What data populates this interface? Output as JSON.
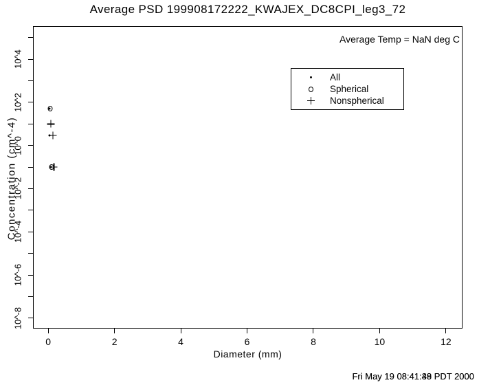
{
  "title": "Average PSD 199908172222_KWAJEX_DC8CPI_leg3_72",
  "annotations": {
    "avg_temp": "Average Temp = NaN deg C"
  },
  "footer": {
    "timestamp_primary": "Fri May 19 08:41:38 PDT 2000",
    "timestamp_overprint": "Fri May 19 08:41:49 PDT 2000"
  },
  "legend": {
    "items": [
      {
        "label": "All",
        "marker": "dot"
      },
      {
        "label": "Spherical",
        "marker": "circle"
      },
      {
        "label": "Nonspherical",
        "marker": "plus"
      }
    ]
  },
  "chart_data": {
    "type": "scatter",
    "title": "Average PSD 199908172222_KWAJEX_DC8CPI_leg3_72",
    "xlabel": "Diameter (mm)",
    "ylabel": "Concentration (cm^-4)",
    "x_scale": "linear",
    "y_scale": "log",
    "grid": false,
    "legend_position": "upper-right-inset",
    "xlim": [
      -0.46,
      12.5
    ],
    "ylim_exponents": [
      -8.48,
      5.53
    ],
    "x_ticks": [
      0,
      2,
      4,
      6,
      8,
      10,
      12
    ],
    "y_ticks_labeled": [
      {
        "exponent": 4,
        "label": "10^4"
      },
      {
        "exponent": 2,
        "label": "10^2"
      },
      {
        "exponent": 0,
        "label": "10^0"
      },
      {
        "exponent": -2,
        "label": "10^-2"
      },
      {
        "exponent": -4,
        "label": "10^-4"
      },
      {
        "exponent": -6,
        "label": "10^-6"
      },
      {
        "exponent": -8,
        "label": "10^-8"
      }
    ],
    "y_ticks_minor_exponents": [
      5,
      3,
      1,
      -1,
      -3,
      -5,
      -7
    ],
    "series": [
      {
        "name": "All",
        "marker": "dot",
        "points": [
          {
            "x": 0.04,
            "y": 50
          },
          {
            "x": 0.04,
            "y": 3
          },
          {
            "x": 0.08,
            "y": 0.1
          }
        ]
      },
      {
        "name": "Spherical",
        "marker": "circle",
        "points": [
          {
            "x": 0.06,
            "y": 50
          },
          {
            "x": 0.1,
            "y": 0.1
          }
        ]
      },
      {
        "name": "Nonspherical",
        "marker": "plus",
        "points": [
          {
            "x": 0.08,
            "y": 10
          },
          {
            "x": 0.14,
            "y": 3
          },
          {
            "x": 0.17,
            "y": 0.1
          }
        ]
      }
    ],
    "colors": {
      "foreground": "#000000",
      "background": "#ffffff"
    }
  }
}
